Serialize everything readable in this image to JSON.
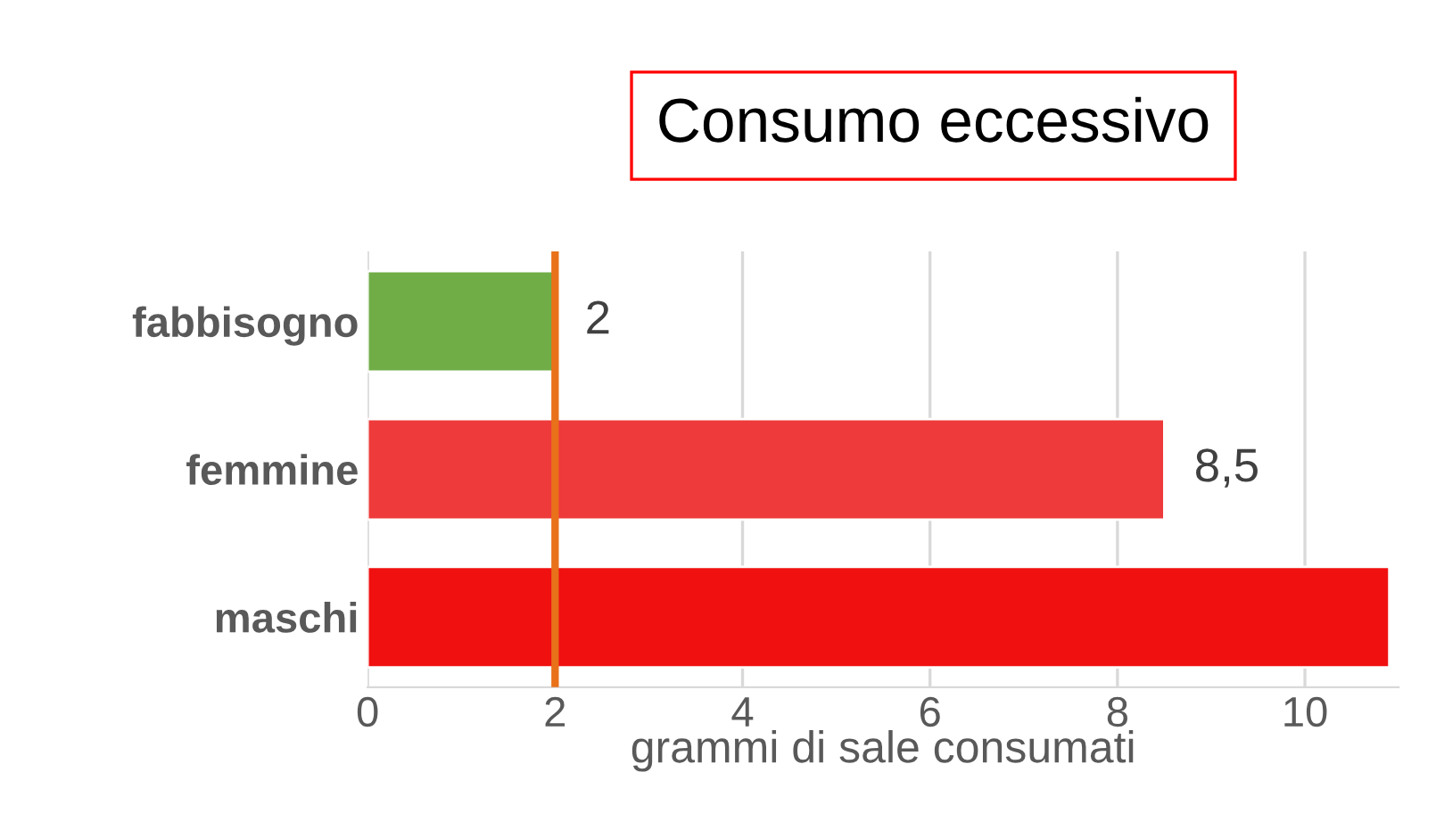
{
  "chart_data": {
    "type": "bar",
    "orientation": "horizontal",
    "categories": [
      "fabbisogno",
      "femmine",
      "maschi"
    ],
    "values": [
      2,
      8.5,
      10.9
    ],
    "colors": [
      "#70ad47",
      "#ee3a3a",
      "#f01010"
    ],
    "value_labels": [
      "2",
      "8,5",
      null
    ],
    "xlabel": "grammi di sale consumati",
    "xlim": [
      0,
      11
    ],
    "xticks": [
      0,
      2,
      4,
      6,
      8,
      10
    ],
    "grid": "x",
    "ref_lines": [
      {
        "axis": "x",
        "value": 2,
        "color": "#e8711a"
      }
    ],
    "annotations": [
      "Consumo eccessivo"
    ]
  }
}
